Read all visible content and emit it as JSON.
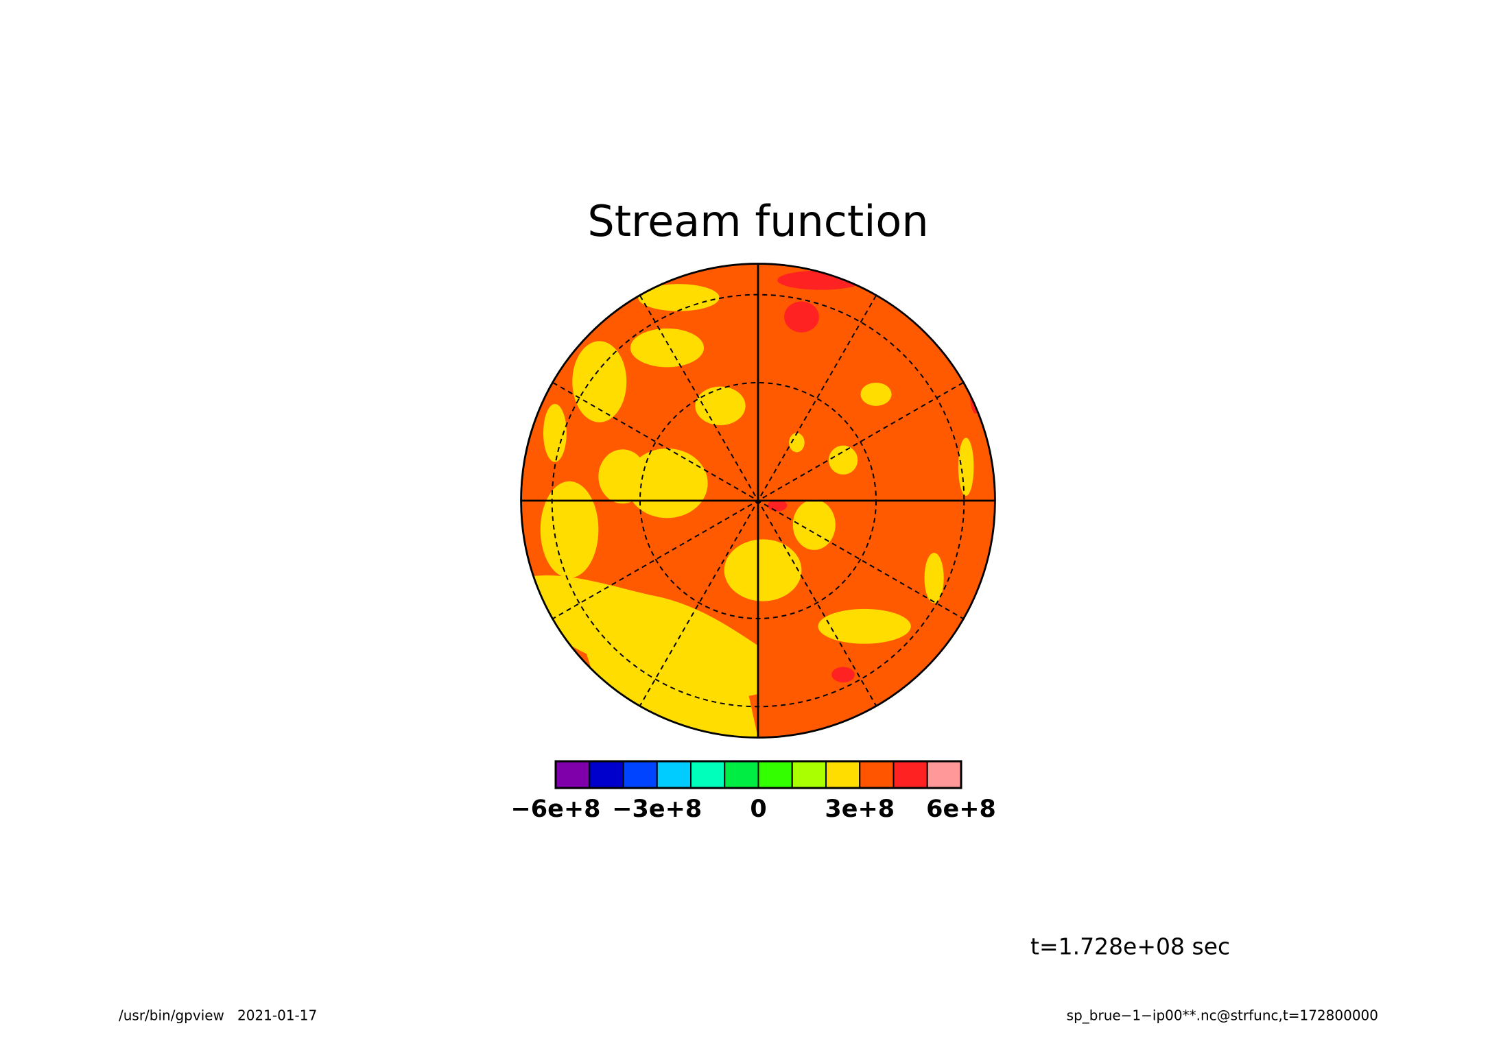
{
  "title": "Stream function",
  "colorbar": {
    "bounds": [
      -600000000,
      -500000000,
      -400000000,
      -300000000,
      -200000000,
      -100000000,
      0,
      100000000,
      200000000,
      300000000,
      400000000,
      500000000,
      600000000
    ],
    "colors": [
      "#7f00aa",
      "#0000cc",
      "#0044ff",
      "#00ccff",
      "#00ffbb",
      "#00ee44",
      "#33ff00",
      "#aaff00",
      "#ffdd00",
      "#ff5500",
      "#ff2222",
      "#ff9999"
    ],
    "ticks": [
      {
        "value": -600000000,
        "label": "−6e+8"
      },
      {
        "value": -300000000,
        "label": "−3e+8"
      },
      0,
      {
        "value": 300000000,
        "label": "3e+8"
      },
      {
        "value": 600000000,
        "label": "6e+8"
      }
    ]
  },
  "time_label": "t=1.728e+08 sec",
  "footer": {
    "left": "/usr/bin/gpview   2021-01-17",
    "right": "sp_brue−1−ip00**.nc@strfunc,t=172800000"
  }
}
